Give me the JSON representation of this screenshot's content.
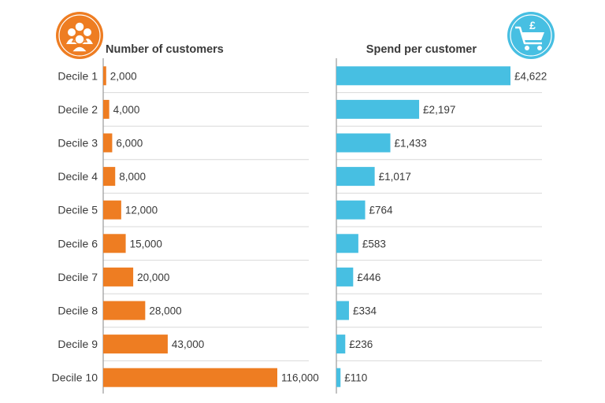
{
  "chart_data": [
    {
      "type": "bar",
      "orientation": "horizontal",
      "title": "Number of customers",
      "icon": "people-group-icon",
      "color": "#ee7d22",
      "categories": [
        "Decile 1",
        "Decile 2",
        "Decile 3",
        "Decile 4",
        "Decile 5",
        "Decile 6",
        "Decile 7",
        "Decile 8",
        "Decile 9",
        "Decile 10"
      ],
      "values": [
        2000,
        4000,
        6000,
        8000,
        12000,
        15000,
        20000,
        28000,
        43000,
        116000
      ],
      "value_labels": [
        "2,000",
        "4,000",
        "6,000",
        "8,000",
        "12,000",
        "15,000",
        "20,000",
        "28,000",
        "43,000",
        "116,000"
      ],
      "xlim": [
        0,
        116000
      ],
      "grid": "row separators"
    },
    {
      "type": "bar",
      "orientation": "horizontal",
      "title": "Spend per customer",
      "icon": "shopping-cart-pound-icon",
      "icon_text": "£",
      "color": "#47bfe2",
      "categories": [
        "Decile 1",
        "Decile 2",
        "Decile 3",
        "Decile 4",
        "Decile 5",
        "Decile 6",
        "Decile 7",
        "Decile 8",
        "Decile 9",
        "Decile 10"
      ],
      "values": [
        4622,
        2197,
        1433,
        1017,
        764,
        583,
        446,
        334,
        236,
        110
      ],
      "value_labels": [
        "£4,622",
        "£2,197",
        "£1,433",
        "£1,017",
        "£764",
        "£583",
        "£446",
        "£334",
        "£236",
        "£110"
      ],
      "xlim": [
        0,
        4622
      ],
      "grid": "row separators"
    }
  ]
}
